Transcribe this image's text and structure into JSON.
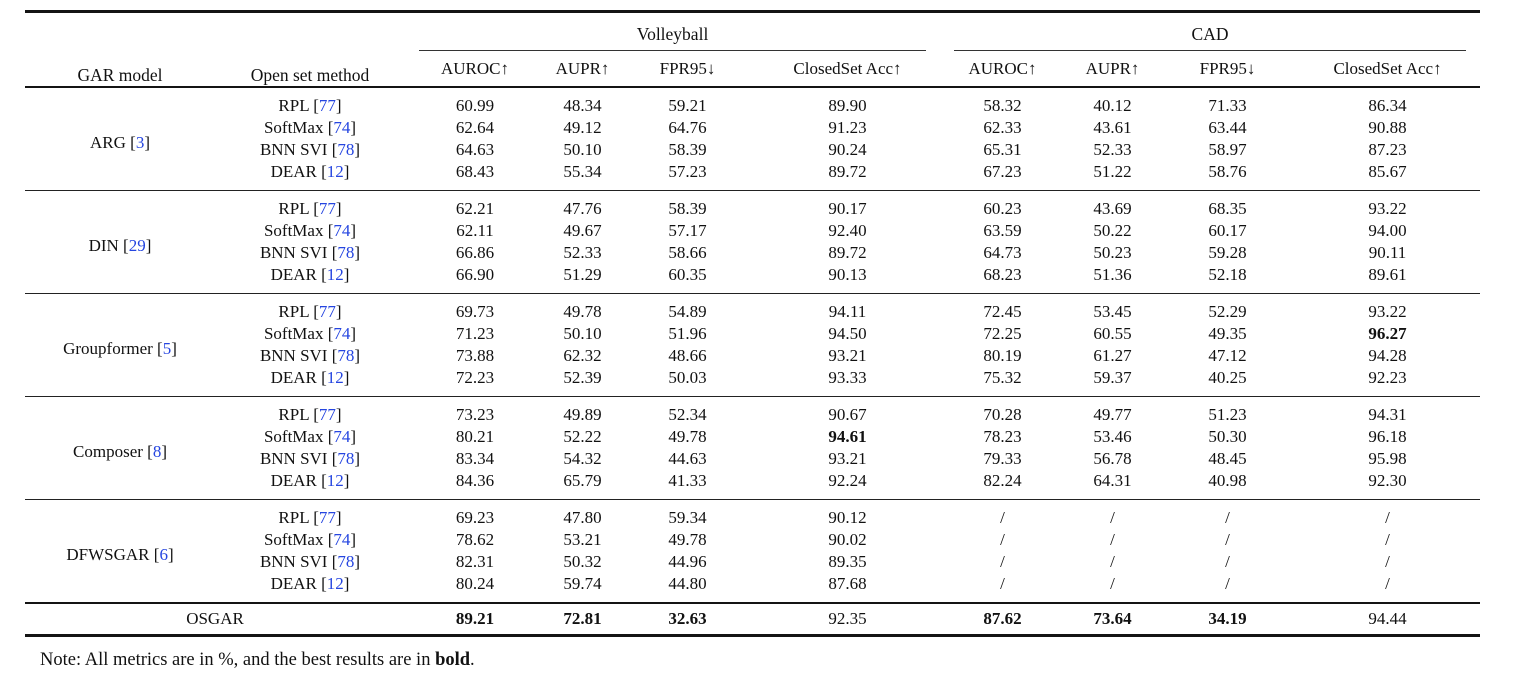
{
  "colors": {
    "citation": "#2545e0",
    "rule": "#141414"
  },
  "header": {
    "col1": "GAR model",
    "col2": "Open set method",
    "group1": "Volleyball",
    "group2": "CAD",
    "metrics": [
      "AUROC↑",
      "AUPR↑",
      "FPR95↓",
      "ClosedSet Acc↑"
    ]
  },
  "table": {
    "groups": [
      {
        "model": "ARG",
        "model_cite": "3",
        "rows": [
          {
            "method": "RPL",
            "cite": "77",
            "values": [
              "60.99",
              "48.34",
              "59.21",
              "89.90",
              "58.32",
              "40.12",
              "71.33",
              "86.34"
            ],
            "bold": []
          },
          {
            "method": "SoftMax",
            "cite": "74",
            "values": [
              "62.64",
              "49.12",
              "64.76",
              "91.23",
              "62.33",
              "43.61",
              "63.44",
              "90.88"
            ],
            "bold": []
          },
          {
            "method": "BNN SVI",
            "cite": "78",
            "values": [
              "64.63",
              "50.10",
              "58.39",
              "90.24",
              "65.31",
              "52.33",
              "58.97",
              "87.23"
            ],
            "bold": []
          },
          {
            "method": "DEAR",
            "cite": "12",
            "values": [
              "68.43",
              "55.34",
              "57.23",
              "89.72",
              "67.23",
              "51.22",
              "58.76",
              "85.67"
            ],
            "bold": []
          }
        ]
      },
      {
        "model": "DIN",
        "model_cite": "29",
        "rows": [
          {
            "method": "RPL",
            "cite": "77",
            "values": [
              "62.21",
              "47.76",
              "58.39",
              "90.17",
              "60.23",
              "43.69",
              "68.35",
              "93.22"
            ],
            "bold": []
          },
          {
            "method": "SoftMax",
            "cite": "74",
            "values": [
              "62.11",
              "49.67",
              "57.17",
              "92.40",
              "63.59",
              "50.22",
              "60.17",
              "94.00"
            ],
            "bold": []
          },
          {
            "method": "BNN SVI",
            "cite": "78",
            "values": [
              "66.86",
              "52.33",
              "58.66",
              "89.72",
              "64.73",
              "50.23",
              "59.28",
              "90.11"
            ],
            "bold": []
          },
          {
            "method": "DEAR",
            "cite": "12",
            "values": [
              "66.90",
              "51.29",
              "60.35",
              "90.13",
              "68.23",
              "51.36",
              "52.18",
              "89.61"
            ],
            "bold": []
          }
        ]
      },
      {
        "model": "Groupformer",
        "model_cite": "5",
        "rows": [
          {
            "method": "RPL",
            "cite": "77",
            "values": [
              "69.73",
              "49.78",
              "54.89",
              "94.11",
              "72.45",
              "53.45",
              "52.29",
              "93.22"
            ],
            "bold": []
          },
          {
            "method": "SoftMax",
            "cite": "74",
            "values": [
              "71.23",
              "50.10",
              "51.96",
              "94.50",
              "72.25",
              "60.55",
              "49.35",
              "96.27"
            ],
            "bold": [
              7
            ]
          },
          {
            "method": "BNN SVI",
            "cite": "78",
            "values": [
              "73.88",
              "62.32",
              "48.66",
              "93.21",
              "80.19",
              "61.27",
              "47.12",
              "94.28"
            ],
            "bold": []
          },
          {
            "method": "DEAR",
            "cite": "12",
            "values": [
              "72.23",
              "52.39",
              "50.03",
              "93.33",
              "75.32",
              "59.37",
              "40.25",
              "92.23"
            ],
            "bold": []
          }
        ]
      },
      {
        "model": "Composer",
        "model_cite": "8",
        "rows": [
          {
            "method": "RPL",
            "cite": "77",
            "values": [
              "73.23",
              "49.89",
              "52.34",
              "90.67",
              "70.28",
              "49.77",
              "51.23",
              "94.31"
            ],
            "bold": []
          },
          {
            "method": "SoftMax",
            "cite": "74",
            "values": [
              "80.21",
              "52.22",
              "49.78",
              "94.61",
              "78.23",
              "53.46",
              "50.30",
              "96.18"
            ],
            "bold": [
              3
            ]
          },
          {
            "method": "BNN SVI",
            "cite": "78",
            "values": [
              "83.34",
              "54.32",
              "44.63",
              "93.21",
              "79.33",
              "56.78",
              "48.45",
              "95.98"
            ],
            "bold": []
          },
          {
            "method": "DEAR",
            "cite": "12",
            "values": [
              "84.36",
              "65.79",
              "41.33",
              "92.24",
              "82.24",
              "64.31",
              "40.98",
              "92.30"
            ],
            "bold": []
          }
        ]
      },
      {
        "model": "DFWSGAR",
        "model_cite": "6",
        "rows": [
          {
            "method": "RPL",
            "cite": "77",
            "values": [
              "69.23",
              "47.80",
              "59.34",
              "90.12",
              "/",
              "/",
              "/",
              "/"
            ],
            "bold": []
          },
          {
            "method": "SoftMax",
            "cite": "74",
            "values": [
              "78.62",
              "53.21",
              "49.78",
              "90.02",
              "/",
              "/",
              "/",
              "/"
            ],
            "bold": []
          },
          {
            "method": "BNN SVI",
            "cite": "78",
            "values": [
              "82.31",
              "50.32",
              "44.96",
              "89.35",
              "/",
              "/",
              "/",
              "/"
            ],
            "bold": []
          },
          {
            "method": "DEAR",
            "cite": "12",
            "values": [
              "80.24",
              "59.74",
              "44.80",
              "87.68",
              "/",
              "/",
              "/",
              "/"
            ],
            "bold": []
          }
        ]
      }
    ],
    "summary": {
      "label": "OSGAR",
      "values": [
        "89.21",
        "72.81",
        "32.63",
        "92.35",
        "87.62",
        "73.64",
        "34.19",
        "94.44"
      ],
      "bold": [
        0,
        1,
        2,
        4,
        5,
        6
      ]
    }
  },
  "note": {
    "prefix": "Note: All metrics are in %, and the best results are in ",
    "bold_word": "bold",
    "suffix": "."
  }
}
